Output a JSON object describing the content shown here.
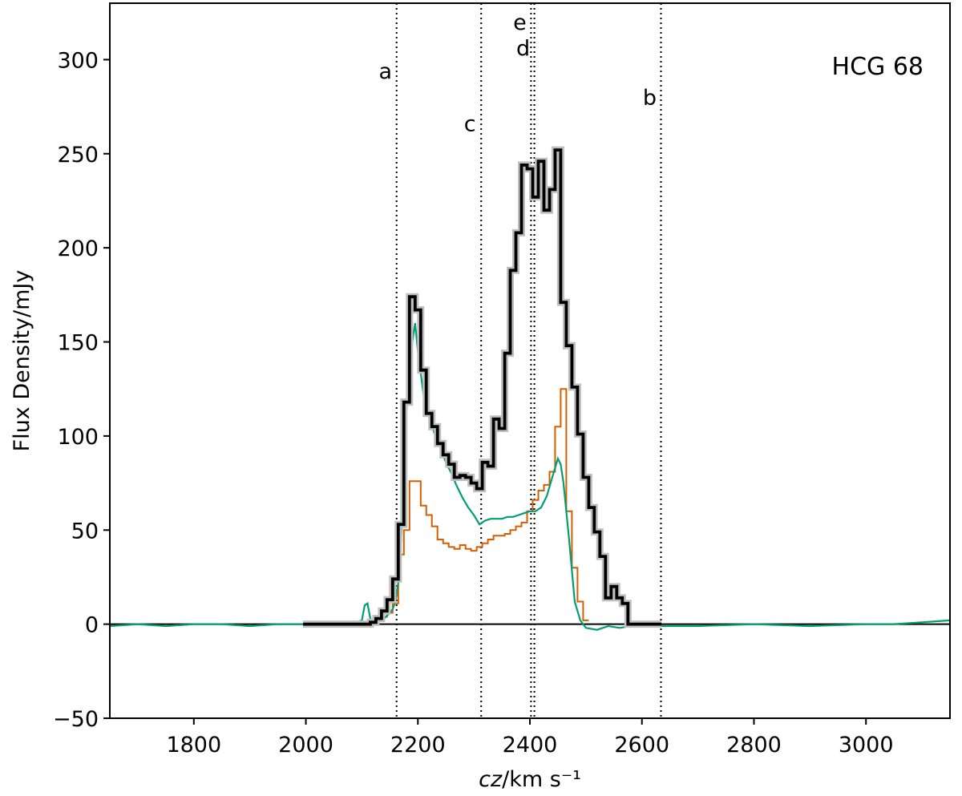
{
  "chart_data": {
    "type": "line",
    "title": "",
    "annotation": "HCG 68",
    "xlabel": "cz/km s⁻¹",
    "ylabel": "Flux Density/mJy",
    "xlim": [
      1650,
      3150
    ],
    "ylim": [
      -50,
      330
    ],
    "x_ticks": [
      1800,
      2000,
      2200,
      2400,
      2600,
      2800,
      3000
    ],
    "x_tick_labels": [
      "1800",
      "2000",
      "2200",
      "2400",
      "2600",
      "2800",
      "3000"
    ],
    "y_ticks": [
      -50,
      0,
      50,
      100,
      150,
      200,
      250,
      300
    ],
    "y_tick_labels": [
      "−50",
      "0",
      "50",
      "100",
      "150",
      "200",
      "250",
      "300"
    ],
    "grid": false,
    "legend": null,
    "zero_line": true,
    "colors": {
      "total": "#000000",
      "total_error": "#bfbfbf",
      "orange": "#d55e00",
      "green": "#009e73",
      "marker": "#000000"
    },
    "markers": [
      {
        "label": "a",
        "x": 2162,
        "label_y": 290
      },
      {
        "label": "c",
        "x": 2313,
        "label_y": 262
      },
      {
        "label": "e",
        "x": 2402,
        "label_y": 316
      },
      {
        "label": "d",
        "x": 2408,
        "label_y": 302
      },
      {
        "label": "b",
        "x": 2634,
        "label_y": 276
      }
    ],
    "series": [
      {
        "style": "step-thick",
        "with_error_band": true,
        "x": [
          2000,
          2010,
          2020,
          2030,
          2040,
          2050,
          2060,
          2070,
          2080,
          2090,
          2100,
          2110,
          2120,
          2130,
          2140,
          2150,
          2160,
          2170,
          2180,
          2190,
          2200,
          2210,
          2220,
          2230,
          2240,
          2250,
          2260,
          2270,
          2280,
          2290,
          2300,
          2310,
          2320,
          2330,
          2340,
          2350,
          2360,
          2370,
          2380,
          2390,
          2400,
          2410,
          2420,
          2430,
          2440,
          2450,
          2460,
          2470,
          2480,
          2490,
          2500,
          2510,
          2520,
          2530,
          2540,
          2550,
          2560,
          2570,
          2580,
          2590,
          2600,
          2610,
          2620,
          2630
        ],
        "y": [
          0,
          0,
          0,
          0,
          0,
          0,
          0,
          0,
          0,
          0,
          0,
          0,
          1,
          3,
          7,
          13,
          24,
          53,
          118,
          174,
          167,
          135,
          112,
          105,
          96,
          90,
          85,
          78,
          79,
          78,
          75,
          72,
          86,
          84,
          109,
          104,
          144,
          188,
          208,
          244,
          242,
          227,
          246,
          220,
          231,
          252,
          171,
          148,
          126,
          101,
          78,
          62,
          49,
          36,
          14,
          20,
          14,
          11,
          0,
          0,
          0,
          0,
          0,
          0
        ]
      },
      {
        "style": "step-thin",
        "color_key": "orange",
        "x": [
          2130,
          2140,
          2150,
          2160,
          2170,
          2180,
          2190,
          2200,
          2210,
          2220,
          2230,
          2240,
          2250,
          2260,
          2270,
          2280,
          2290,
          2300,
          2310,
          2320,
          2330,
          2340,
          2350,
          2360,
          2370,
          2380,
          2390,
          2400,
          2410,
          2420,
          2430,
          2440,
          2450,
          2460,
          2470,
          2480,
          2490,
          2500
        ],
        "y": [
          2,
          4,
          6,
          11,
          37,
          50,
          76,
          76,
          63,
          58,
          52,
          45,
          43,
          41,
          40,
          42,
          40,
          39,
          41,
          43,
          45,
          47,
          47,
          48,
          50,
          52,
          54,
          60,
          66,
          71,
          74,
          81,
          105,
          125,
          60,
          30,
          12,
          2
        ]
      },
      {
        "style": "line",
        "color_key": "green",
        "x": [
          1650,
          1700,
          1750,
          1800,
          1850,
          1900,
          1950,
          2000,
          2050,
          2090,
          2100,
          2105,
          2110,
          2115,
          2120,
          2130,
          2140,
          2150,
          2155,
          2160,
          2165,
          2170,
          2175,
          2180,
          2185,
          2190,
          2195,
          2200,
          2210,
          2220,
          2230,
          2240,
          2250,
          2260,
          2270,
          2280,
          2290,
          2300,
          2310,
          2320,
          2330,
          2340,
          2350,
          2360,
          2370,
          2380,
          2390,
          2400,
          2410,
          2420,
          2430,
          2440,
          2450,
          2455,
          2460,
          2470,
          2480,
          2490,
          2500,
          2520,
          2540,
          2560,
          2580,
          2600,
          2650,
          2700,
          2800,
          2900,
          3000,
          3050,
          3100,
          3150
        ],
        "y": [
          -1,
          0,
          -1,
          0,
          0,
          -1,
          0,
          0,
          0,
          1,
          2,
          10,
          11,
          3,
          1,
          2,
          3,
          6,
          8,
          12,
          22,
          45,
          90,
          115,
          130,
          150,
          160,
          145,
          122,
          110,
          101,
          94,
          86,
          80,
          73,
          67,
          62,
          58,
          53,
          55,
          56,
          56,
          56,
          57,
          57,
          58,
          59,
          60,
          60,
          62,
          68,
          78,
          88,
          85,
          75,
          45,
          12,
          2,
          -2,
          -3,
          -1,
          -2,
          -1,
          -1,
          -1,
          -1,
          0,
          -1,
          0,
          0,
          1,
          2
        ]
      }
    ]
  }
}
